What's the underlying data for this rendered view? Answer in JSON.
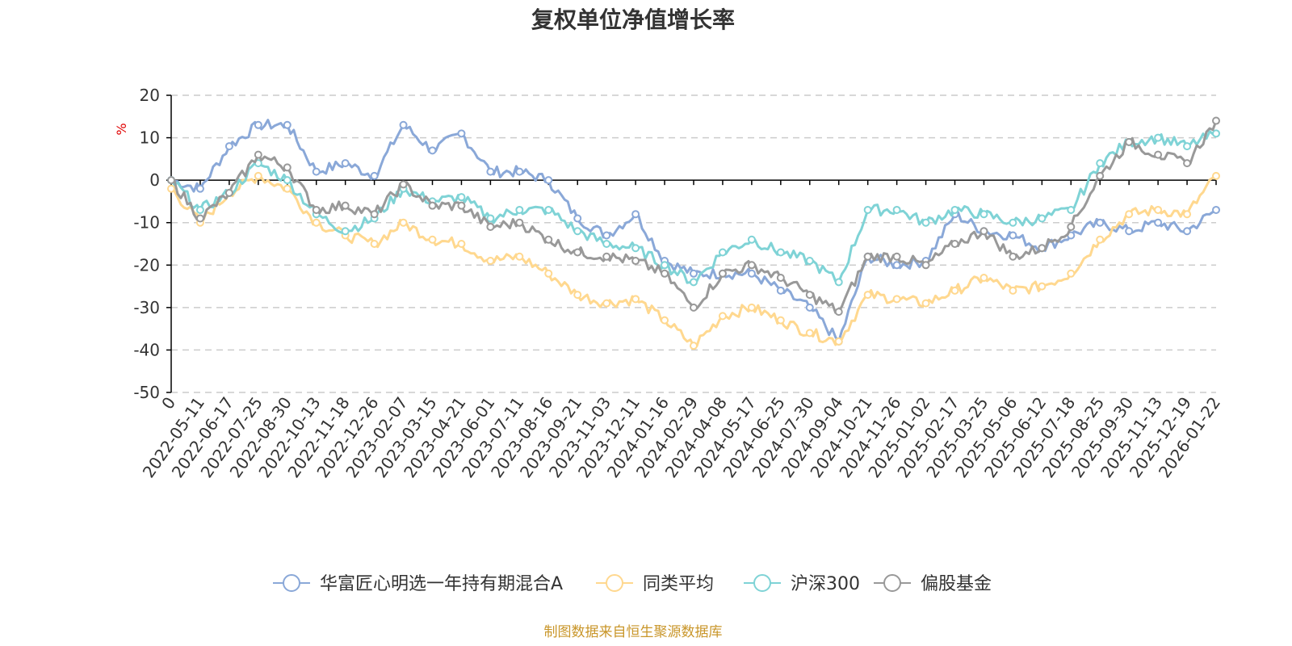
{
  "colors": {
    "fund": "#8aa8d8",
    "peer": "#ffd88f",
    "hs300": "#7fd3d6",
    "equity": "#999999",
    "axis": "#000000",
    "grid": "#cccccc",
    "source": "#c9962a",
    "unit": "#e00000"
  },
  "chart_data": {
    "type": "line",
    "title": "复权单位净值增长率",
    "ylabel": "%",
    "xlabel": "",
    "ylim": [
      -50,
      20
    ],
    "yticks": [
      20,
      10,
      0,
      -10,
      -20,
      -30,
      -40,
      -50
    ],
    "grid": true,
    "legend_position": "bottom",
    "source": "制图数据来自恒生聚源数据库",
    "x": [
      "0",
      "2022-05-11",
      "2022-06-17",
      "2022-07-25",
      "2022-08-30",
      "2022-10-13",
      "2022-11-18",
      "2022-12-26",
      "2023-02-07",
      "2023-03-15",
      "2023-04-21",
      "2023-06-01",
      "2023-07-11",
      "2023-08-16",
      "2023-09-21",
      "2023-11-03",
      "2023-12-11",
      "2024-01-16",
      "2024-02-29",
      "2024-04-08",
      "2024-05-17",
      "2024-06-25",
      "2024-07-30",
      "2024-09-04",
      "2024-10-21",
      "2024-11-26",
      "2025-01-02",
      "2025-02-17",
      "2025-03-25",
      "2025-05-06",
      "2025-06-12",
      "2025-07-18",
      "2025-08-25",
      "2025-09-30",
      "2025-11-13",
      "2025-12-19",
      "2026-01-22"
    ],
    "series": [
      {
        "name": "华富匠心明选一年持有期混合A",
        "color_key": "fund",
        "values": [
          0,
          -2,
          8,
          13,
          13,
          2,
          4,
          1,
          13,
          7,
          11,
          2,
          2,
          0,
          -9,
          -13,
          -8,
          -19,
          -22,
          -22,
          -22,
          -26,
          -30,
          -38,
          -18,
          -20,
          -19,
          -8,
          -12,
          -13,
          -16,
          -13,
          -10,
          -12,
          -10,
          -12,
          -7
        ]
      },
      {
        "name": "同类平均",
        "color_key": "peer",
        "values": [
          -2,
          -10,
          -3,
          1,
          -2,
          -10,
          -13,
          -15,
          -10,
          -14,
          -15,
          -19,
          -18,
          -22,
          -27,
          -29,
          -28,
          -33,
          -39,
          -32,
          -30,
          -33,
          -36,
          -38,
          -27,
          -28,
          -29,
          -26,
          -23,
          -26,
          -25,
          -22,
          -14,
          -8,
          -7,
          -8,
          1
        ]
      },
      {
        "name": "沪深300",
        "color_key": "hs300",
        "values": [
          0,
          -7,
          -3,
          4,
          0,
          -8,
          -12,
          -9,
          -2,
          -5,
          -4,
          -9,
          -7,
          -7,
          -12,
          -15,
          -16,
          -20,
          -24,
          -17,
          -14,
          -17,
          -19,
          -24,
          -7,
          -7,
          -10,
          -7,
          -8,
          -10,
          -9,
          -7,
          4,
          9,
          10,
          8,
          11
        ]
      },
      {
        "name": "偏股基金",
        "color_key": "equity",
        "values": [
          0,
          -9,
          -3,
          6,
          3,
          -7,
          -6,
          -8,
          -1,
          -6,
          -6,
          -11,
          -10,
          -14,
          -17,
          -18,
          -19,
          -22,
          -30,
          -22,
          -20,
          -23,
          -27,
          -31,
          -18,
          -18,
          -20,
          -15,
          -12,
          -18,
          -16,
          -11,
          1,
          9,
          6,
          4,
          14
        ]
      }
    ]
  }
}
